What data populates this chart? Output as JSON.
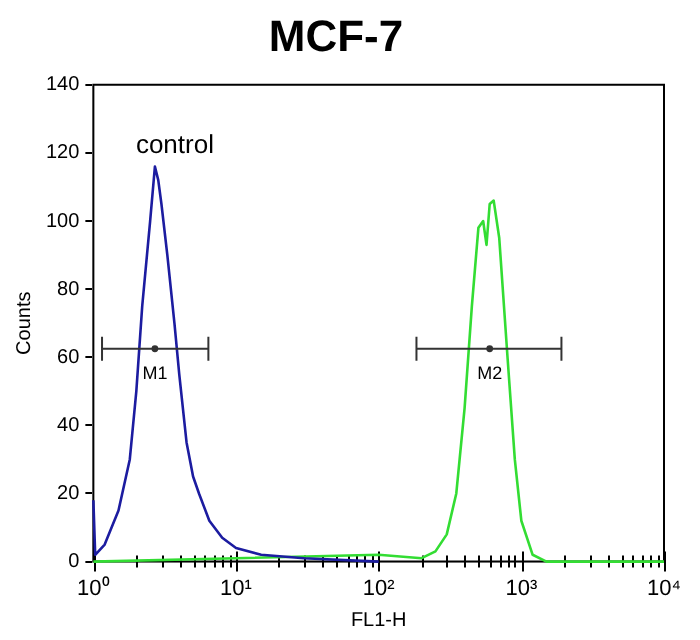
{
  "chart_data": {
    "type": "line",
    "title": "MCF-7",
    "xlabel": "FL1-H",
    "ylabel": "Counts",
    "log": "x",
    "grid": false,
    "legend": false,
    "marker": "none",
    "line_style": "solid",
    "xlim": [
      1,
      10000
    ],
    "xticks": [
      {
        "value": 1,
        "label": "10⁰"
      },
      {
        "value": 2,
        "label": null
      },
      {
        "value": 3,
        "label": null
      },
      {
        "value": 4,
        "label": null
      },
      {
        "value": 5,
        "label": null
      },
      {
        "value": 6,
        "label": null
      },
      {
        "value": 7,
        "label": null
      },
      {
        "value": 8,
        "label": null
      },
      {
        "value": 9,
        "label": null
      },
      {
        "value": 10,
        "label": "10¹"
      },
      {
        "value": 20,
        "label": null
      },
      {
        "value": 30,
        "label": null
      },
      {
        "value": 40,
        "label": null
      },
      {
        "value": 50,
        "label": null
      },
      {
        "value": 60,
        "label": null
      },
      {
        "value": 70,
        "label": null
      },
      {
        "value": 80,
        "label": null
      },
      {
        "value": 90,
        "label": null
      },
      {
        "value": 100,
        "label": "10²"
      },
      {
        "value": 200,
        "label": null
      },
      {
        "value": 300,
        "label": null
      },
      {
        "value": 400,
        "label": null
      },
      {
        "value": 500,
        "label": null
      },
      {
        "value": 600,
        "label": null
      },
      {
        "value": 700,
        "label": null
      },
      {
        "value": 800,
        "label": null
      },
      {
        "value": 900,
        "label": null
      },
      {
        "value": 1000,
        "label": "10³"
      },
      {
        "value": 2000,
        "label": null
      },
      {
        "value": 3000,
        "label": null
      },
      {
        "value": 4000,
        "label": null
      },
      {
        "value": 5000,
        "label": null
      },
      {
        "value": 6000,
        "label": null
      },
      {
        "value": 7000,
        "label": null
      },
      {
        "value": 8000,
        "label": null
      },
      {
        "value": 9000,
        "label": null
      },
      {
        "value": 10000,
        "label": "10⁴"
      }
    ],
    "ylim": [
      0,
      140
    ],
    "yticks": [
      0,
      20,
      40,
      60,
      80,
      100,
      120,
      140
    ],
    "series": [
      {
        "name": "control",
        "color": "#1c1ca0",
        "x": [
          1,
          1.03,
          1.2,
          1.5,
          1.8,
          2,
          2.2,
          2.5,
          2.7,
          2.85,
          3,
          3.3,
          3.7,
          4,
          4.5,
          5,
          5.5,
          6.5,
          8,
          10,
          15,
          30,
          100
        ],
        "values": [
          18,
          2,
          5,
          15,
          30,
          50,
          75,
          100,
          116,
          112,
          105,
          90,
          70,
          55,
          35,
          25,
          20,
          12,
          7,
          4,
          2,
          1,
          0
        ]
      },
      {
        "type": "scatter",
        "marker": "circle",
        "color": "#333333",
        "x": [
          2.7,
          600
        ],
        "values": [
          62.5,
          62.5
        ],
        "xerrors": [
          [
            1.15,
            6.4
          ],
          [
            184,
            1910
          ]
        ]
      },
      {
        "color": "#33dd33",
        "x": [
          1,
          10,
          100,
          200,
          250,
          300,
          350,
          400,
          450,
          500,
          540,
          570,
          600,
          640,
          700,
          800,
          900,
          1000,
          1200,
          1500,
          10000
        ],
        "values": [
          0,
          1,
          2,
          1,
          3,
          8,
          20,
          45,
          75,
          98,
          100,
          93,
          105,
          106,
          95,
          60,
          30,
          12,
          2,
          0,
          0
        ]
      }
    ],
    "annotations": [
      {
        "text": "M1",
        "x": 2.7,
        "y": 62.5
      },
      {
        "text": "M2",
        "x": 600,
        "y": 62.5
      }
    ]
  }
}
